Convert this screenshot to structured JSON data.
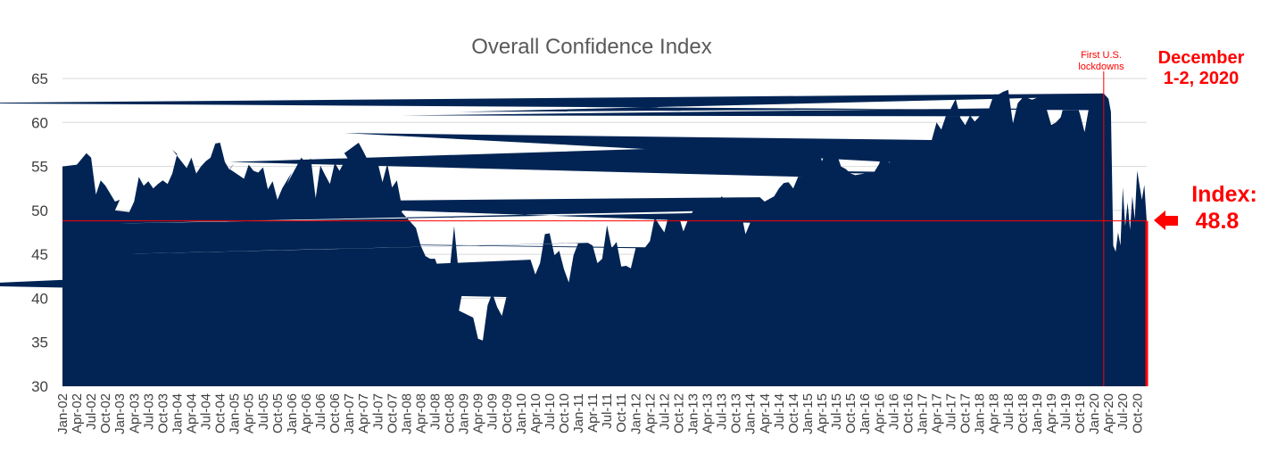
{
  "chart_data": {
    "type": "area",
    "title": "Overall Confidence Index",
    "xlabel": "",
    "ylabel": "",
    "ylim": [
      30,
      65
    ],
    "yticks": [
      30,
      35,
      40,
      45,
      50,
      55,
      60,
      65
    ],
    "grid": true,
    "area_color": "#012454",
    "accent_color": "#ff0000",
    "x_tick_labels": [
      "Jan-02",
      "Apr-02",
      "Jul-02",
      "Oct-02",
      "Jan-03",
      "Apr-03",
      "Jul-03",
      "Oct-03",
      "Jan-04",
      "Apr-04",
      "Jul-04",
      "Oct-04",
      "Jan-05",
      "Apr-05",
      "Jul-05",
      "Oct-05",
      "Jan-06",
      "Apr-06",
      "Jul-06",
      "Oct-06",
      "Jan-07",
      "Apr-07",
      "Jul-07",
      "Oct-07",
      "Jan-08",
      "Apr-08",
      "Jul-08",
      "Oct-08",
      "Jan-09",
      "Apr-09",
      "Jul-09",
      "Oct-09",
      "Jan-10",
      "Apr-10",
      "Jul-10",
      "Oct-10",
      "Jan-11",
      "Apr-11",
      "Jul-11",
      "Oct-11",
      "Jan-12",
      "Apr-12",
      "Jul-12",
      "Oct-12",
      "Jan-13",
      "Apr-13",
      "Jul-13",
      "Oct-13",
      "Jan-14",
      "Apr-14",
      "Jul-14",
      "Oct-14",
      "Jan-15",
      "Apr-15",
      "Jul-15",
      "Oct-15",
      "Jan-16",
      "Apr-16",
      "Jul-16",
      "Oct-16",
      "Jan-17",
      "Apr-17",
      "Jul-17",
      "Oct-17",
      "Jan-18",
      "Apr-18",
      "Jul-18",
      "Oct-18",
      "Jan-19",
      "Apr-19",
      "Jul-19",
      "Oct-19",
      "Jan-20",
      "Apr-20",
      "Jul-20",
      "Oct-20"
    ],
    "anchors": [
      [
        "Jan-02",
        55.0
      ],
      [
        "Apr-02",
        55.2
      ],
      [
        "Jun-02",
        56.5
      ],
      [
        "Jul-02",
        56.0
      ],
      [
        "Aug-02",
        51.8
      ],
      [
        "Sep-02",
        53.4
      ],
      [
        "Oct-02",
        52.8
      ],
      [
        "Dec-02",
        51.0
      ],
      [
        "Jan-03",
        51.2
      ],
      [
        "Feb-03",
        50.0
      ],
      [
        "Mar-03",
        49.8
      ],
      [
        "Apr-03",
        51.0
      ],
      [
        "May-03",
        53.8
      ],
      [
        "Jun-03",
        52.8
      ],
      [
        "Jul-03",
        53.3
      ],
      [
        "Aug-03",
        52.5
      ],
      [
        "Sep-03",
        53.0
      ],
      [
        "Oct-03",
        53.4
      ],
      [
        "Nov-03",
        53.0
      ],
      [
        "Dec-03",
        54.2
      ],
      [
        "Jan-04",
        56.4
      ],
      [
        "Feb-04",
        56.9
      ],
      [
        "Mar-04",
        54.8
      ],
      [
        "Apr-04",
        56.0
      ],
      [
        "May-04",
        54.2
      ],
      [
        "Jun-04",
        55.0
      ],
      [
        "Jul-04",
        55.6
      ],
      [
        "Aug-04",
        56.0
      ],
      [
        "Sep-04",
        57.6
      ],
      [
        "Oct-04",
        57.7
      ],
      [
        "Nov-04",
        55.5
      ],
      [
        "Dec-04",
        54.6
      ],
      [
        "Jan-05",
        55.4
      ],
      [
        "Feb-05",
        54.7
      ],
      [
        "Mar-05",
        53.6
      ],
      [
        "Apr-05",
        55.2
      ],
      [
        "May-05",
        54.5
      ],
      [
        "Jun-05",
        54.3
      ],
      [
        "Jul-05",
        54.9
      ],
      [
        "Aug-05",
        52.4
      ],
      [
        "Sep-05",
        53.3
      ],
      [
        "Oct-05",
        51.2
      ],
      [
        "Nov-05",
        52.5
      ],
      [
        "Dec-05",
        53.4
      ],
      [
        "Jan-06",
        54.3
      ],
      [
        "Feb-06",
        53.0
      ],
      [
        "Mar-06",
        56.0
      ],
      [
        "Apr-06",
        55.4
      ],
      [
        "May-06",
        55.9
      ],
      [
        "Jun-06",
        51.4
      ],
      [
        "Jul-06",
        55.1
      ],
      [
        "Aug-06",
        54.0
      ],
      [
        "Sep-06",
        53.0
      ],
      [
        "Oct-06",
        55.4
      ],
      [
        "Nov-06",
        54.5
      ],
      [
        "Dec-06",
        55.5
      ],
      [
        "Jan-07",
        55.7
      ],
      [
        "Feb-07",
        56.5
      ],
      [
        "Mar-07",
        57.7
      ],
      [
        "Apr-07",
        56.7
      ],
      [
        "May-07",
        55.6
      ],
      [
        "Jun-07",
        55.2
      ],
      [
        "Jul-07",
        55.4
      ],
      [
        "Aug-07",
        53.2
      ],
      [
        "Sep-07",
        55.3
      ],
      [
        "Oct-07",
        52.6
      ],
      [
        "Nov-07",
        53.4
      ],
      [
        "Dec-07",
        50.6
      ],
      [
        "Jan-08",
        50.9
      ],
      [
        "Feb-08",
        49.8
      ],
      [
        "Mar-08",
        48.0
      ],
      [
        "Apr-08",
        46.0
      ],
      [
        "May-08",
        44.8
      ],
      [
        "Jun-08",
        44.5
      ],
      [
        "Jul-08",
        44.5
      ],
      [
        "Aug-08",
        42.9
      ],
      [
        "Sep-08",
        42.1
      ],
      [
        "Oct-08",
        42.8
      ],
      [
        "Nov-08",
        48.2
      ],
      [
        "Dec-08",
        42.6
      ],
      [
        "Jan-09",
        41.6
      ],
      [
        "Feb-09",
        38.6
      ],
      [
        "Mar-09",
        37.8
      ],
      [
        "Apr-09",
        35.4
      ],
      [
        "May-09",
        35.2
      ],
      [
        "Jun-09",
        39.2
      ],
      [
        "Jul-09",
        40.6
      ],
      [
        "Aug-09",
        39.0
      ],
      [
        "Sep-09",
        38.0
      ],
      [
        "Oct-09",
        40.3
      ],
      [
        "Nov-09",
        41.3
      ],
      [
        "Dec-09",
        43.1
      ],
      [
        "Jan-10",
        40.1
      ],
      [
        "Feb-10",
        41.5
      ],
      [
        "Mar-10",
        44.4
      ],
      [
        "Apr-10",
        42.7
      ],
      [
        "May-10",
        44.0
      ],
      [
        "Jun-10",
        47.3
      ],
      [
        "Jul-10",
        47.4
      ],
      [
        "Aug-10",
        44.9
      ],
      [
        "Sep-10",
        45.4
      ],
      [
        "Oct-10",
        43.3
      ],
      [
        "Nov-10",
        41.8
      ],
      [
        "Dec-10",
        44.9
      ],
      [
        "Jan-11",
        46.3
      ],
      [
        "Feb-11",
        44.7
      ],
      [
        "Mar-11",
        46.3
      ],
      [
        "Apr-11",
        46.0
      ],
      [
        "May-11",
        44.0
      ],
      [
        "Jun-11",
        44.5
      ],
      [
        "Jul-11",
        48.3
      ],
      [
        "Aug-11",
        45.7
      ],
      [
        "Sep-11",
        46.4
      ],
      [
        "Oct-11",
        43.6
      ],
      [
        "Nov-11",
        43.7
      ],
      [
        "Dec-11",
        43.4
      ],
      [
        "Jan-12",
        45.7
      ],
      [
        "Feb-12",
        46.6
      ],
      [
        "Mar-12",
        45.8
      ],
      [
        "Apr-12",
        46.5
      ],
      [
        "May-12",
        49.2
      ],
      [
        "Jun-12",
        48.3
      ],
      [
        "Jul-12",
        47.5
      ],
      [
        "Aug-12",
        49.6
      ],
      [
        "Sep-12",
        49.3
      ],
      [
        "Oct-12",
        49.4
      ],
      [
        "Nov-12",
        47.6
      ],
      [
        "Dec-12",
        49.0
      ],
      [
        "Jan-13",
        49.9
      ],
      [
        "Feb-13",
        48.5
      ],
      [
        "Mar-13",
        49.7
      ],
      [
        "Apr-13",
        49.9
      ],
      [
        "May-13",
        49.8
      ],
      [
        "Jun-13",
        50.6
      ],
      [
        "Jul-13",
        51.6
      ],
      [
        "Aug-13",
        51.1
      ],
      [
        "Sep-13",
        50.1
      ],
      [
        "Oct-13",
        50.9
      ],
      [
        "Nov-13",
        50.0
      ],
      [
        "Dec-13",
        47.3
      ],
      [
        "Jan-14",
        48.6
      ],
      [
        "Feb-14",
        50.9
      ],
      [
        "Mar-14",
        51.5
      ],
      [
        "Apr-14",
        51.0
      ],
      [
        "May-14",
        51.3
      ],
      [
        "Jun-14",
        51.6
      ],
      [
        "Jul-14",
        52.5
      ],
      [
        "Aug-14",
        53.1
      ],
      [
        "Sep-14",
        53.2
      ],
      [
        "Oct-14",
        52.5
      ],
      [
        "Nov-14",
        53.8
      ],
      [
        "Dec-14",
        54.2
      ],
      [
        "Jan-15",
        53.8
      ],
      [
        "Feb-15",
        55.5
      ],
      [
        "Mar-15",
        57.6
      ],
      [
        "Apr-15",
        55.6
      ],
      [
        "May-15",
        56.8
      ],
      [
        "Jun-15",
        56.9
      ],
      [
        "Jul-15",
        56.6
      ],
      [
        "Aug-15",
        55.0
      ],
      [
        "Sep-15",
        54.7
      ],
      [
        "Oct-15",
        54.2
      ],
      [
        "Nov-15",
        54.0
      ],
      [
        "Dec-15",
        54.1
      ],
      [
        "Jan-16",
        54.2
      ],
      [
        "Feb-16",
        55.3
      ],
      [
        "Mar-16",
        54.4
      ],
      [
        "Apr-16",
        55.3
      ],
      [
        "May-16",
        57.7
      ],
      [
        "Jun-16",
        55.4
      ],
      [
        "Jul-16",
        55.9
      ],
      [
        "Aug-16",
        57.7
      ],
      [
        "Sep-16",
        56.2
      ],
      [
        "Oct-16",
        57.7
      ],
      [
        "Nov-16",
        56.5
      ],
      [
        "Dec-16",
        57.9
      ],
      [
        "Jan-17",
        55.3
      ],
      [
        "Feb-17",
        58.8
      ],
      [
        "Mar-17",
        58.0
      ],
      [
        "Apr-17",
        60.0
      ],
      [
        "May-17",
        59.2
      ],
      [
        "Jun-17",
        60.8
      ],
      [
        "Jul-17",
        61.6
      ],
      [
        "Aug-17",
        62.7
      ],
      [
        "Sep-17",
        60.5
      ],
      [
        "Oct-17",
        59.7
      ],
      [
        "Nov-17",
        60.8
      ],
      [
        "Dec-17",
        60.1
      ],
      [
        "Jan-18",
        60.7
      ],
      [
        "Feb-18",
        60.8
      ],
      [
        "Mar-18",
        61.6
      ],
      [
        "Apr-18",
        63.2
      ],
      [
        "May-18",
        63.2
      ],
      [
        "Jun-18",
        63.5
      ],
      [
        "Jul-18",
        63.7
      ],
      [
        "Aug-18",
        59.9
      ],
      [
        "Sep-18",
        62.2
      ],
      [
        "Oct-18",
        62.8
      ],
      [
        "Nov-18",
        62.8
      ],
      [
        "Dec-18",
        62.6
      ],
      [
        "Jan-19",
        62.8
      ],
      [
        "Feb-19",
        61.2
      ],
      [
        "Mar-19",
        61.6
      ],
      [
        "Apr-19",
        59.7
      ],
      [
        "May-19",
        60.0
      ],
      [
        "Jun-19",
        60.6
      ],
      [
        "Jul-19",
        62.7
      ],
      [
        "Aug-19",
        62.9
      ],
      [
        "Sep-19",
        62.6
      ],
      [
        "Oct-19",
        61.0
      ],
      [
        "Nov-19",
        58.9
      ],
      [
        "Dec-19",
        62.0
      ],
      [
        "Jan-20",
        61.4
      ],
      [
        "Feb-20",
        62.2
      ],
      [
        "Mar-20",
        63.3
      ],
      [
        "Apr-20",
        62.7
      ],
      [
        "Apr-20b",
        61.2
      ],
      [
        "May-20",
        46.0
      ],
      [
        "May-20b",
        45.3
      ],
      [
        "Jun-20",
        47.5
      ],
      [
        "Jun-20b",
        46.0
      ],
      [
        "Jul-20",
        52.6
      ],
      [
        "Jul-20b",
        48.2
      ],
      [
        "Aug-20",
        50.9
      ],
      [
        "Aug-20b",
        47.8
      ],
      [
        "Sep-20",
        51.6
      ],
      [
        "Sep-20b",
        49.0
      ],
      [
        "Oct-20",
        54.5
      ],
      [
        "Oct-20b",
        52.8
      ],
      [
        "Nov-20",
        51.2
      ],
      [
        "Nov-20b",
        52.9
      ],
      [
        "Dec-20",
        48.8
      ]
    ],
    "reference_line_value": 48.8,
    "lockdown_month": "Mar-20",
    "annotations": {
      "lockdown_label_line1": "First U.S.",
      "lockdown_label_line2": "lockdowns",
      "date_line1": "December",
      "date_line2": "1-2, 2020",
      "index_label": "Index:",
      "index_value": "48.8"
    }
  }
}
